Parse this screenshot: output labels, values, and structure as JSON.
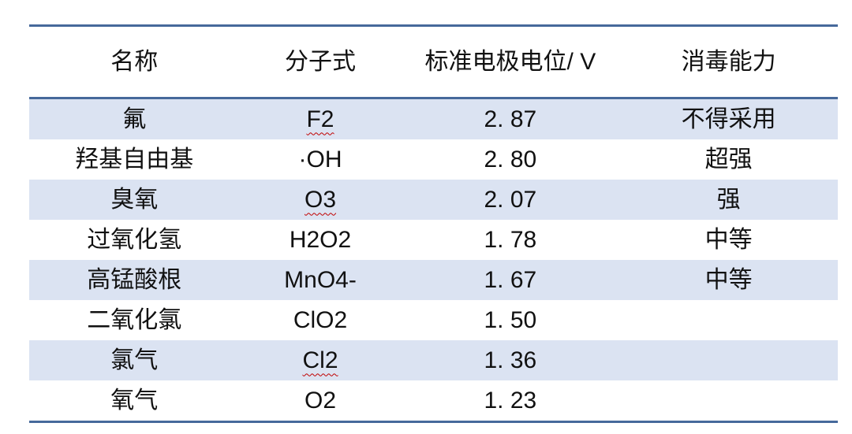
{
  "table": {
    "title_semantic": "oxidant-disinfection-capability-table",
    "headers": [
      {
        "label": "名称"
      },
      {
        "label": "分子式"
      },
      {
        "label": "标准电极电位/ V"
      },
      {
        "label": "消毒能力"
      }
    ],
    "rows": [
      {
        "name": "氟",
        "formula": "F2",
        "potential": "2. 87",
        "ability": "不得采用",
        "squiggle": true
      },
      {
        "name": "羟基自由基",
        "formula": "·OH",
        "potential": "2. 80",
        "ability": "超强",
        "squiggle": false
      },
      {
        "name": "臭氧",
        "formula": "O3",
        "potential": "2. 07",
        "ability": "强",
        "squiggle": true
      },
      {
        "name": "过氧化氢",
        "formula": "H2O2",
        "potential": "1. 78",
        "ability": "中等",
        "squiggle": false
      },
      {
        "name": "高锰酸根",
        "formula": "MnO4-",
        "potential": "1. 67",
        "ability": "中等",
        "squiggle": false
      },
      {
        "name": "二氧化氯",
        "formula": "ClO2",
        "potential": "1. 50",
        "ability": "",
        "squiggle": false
      },
      {
        "name": "氯气",
        "formula": "Cl2",
        "potential": "1. 36",
        "ability": "",
        "squiggle": true
      },
      {
        "name": "氧气",
        "formula": "O2",
        "potential": "1. 23",
        "ability": "",
        "squiggle": false
      }
    ],
    "colors": {
      "rule_blue": "#46699b",
      "stripe_blue": "#dbe3f2",
      "text": "#111111",
      "spellcheck_red": "#c00000",
      "background": "#ffffff"
    }
  }
}
